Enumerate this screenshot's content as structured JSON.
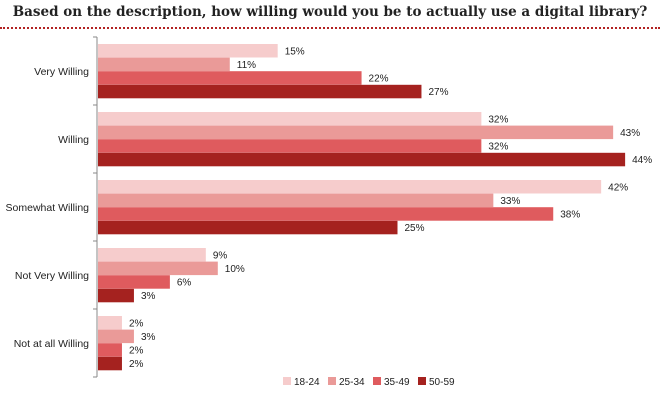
{
  "chart_data": {
    "type": "bar",
    "orientation": "horizontal",
    "title": "Based on the description, how willing would you be to actually use a digital library?",
    "categories": [
      "Very Willing",
      "Willing",
      "Somewhat Willing",
      "Not Very Willing",
      "Not at all Willing"
    ],
    "series": [
      {
        "name": "18-24",
        "color": "#f6cccc",
        "values": [
          15,
          32,
          42,
          9,
          2
        ]
      },
      {
        "name": "25-34",
        "color": "#ea9a98",
        "values": [
          11,
          43,
          33,
          10,
          3
        ]
      },
      {
        "name": "35-49",
        "color": "#df5b5e",
        "values": [
          22,
          32,
          38,
          6,
          2
        ]
      },
      {
        "name": "50-59",
        "color": "#a5221f",
        "values": [
          27,
          44,
          25,
          3,
          2
        ]
      }
    ],
    "value_suffix": "%",
    "xlim": [
      0,
      45
    ],
    "grid": false,
    "legend_position": "bottom"
  }
}
